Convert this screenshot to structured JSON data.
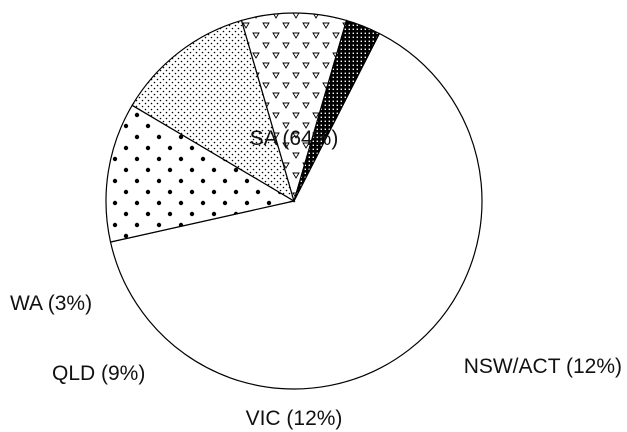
{
  "chart_data": {
    "type": "pie",
    "title": "",
    "slices": [
      {
        "name": "SA",
        "value": 64,
        "label": "SA (64%)",
        "pattern": "none"
      },
      {
        "name": "NSW/ACT",
        "value": 12,
        "label": "NSW/ACT (12%)",
        "pattern": "large-dots"
      },
      {
        "name": "VIC",
        "value": 12,
        "label": "VIC (12%)",
        "pattern": "fine-stipple"
      },
      {
        "name": "QLD",
        "value": 9,
        "label": "QLD (9%)",
        "pattern": "triangles"
      },
      {
        "name": "WA",
        "value": 3,
        "label": "WA (3%)",
        "pattern": "crosshatch"
      }
    ],
    "colors": {
      "stroke": "#000000",
      "background": "#ffffff"
    },
    "legend": "none"
  }
}
